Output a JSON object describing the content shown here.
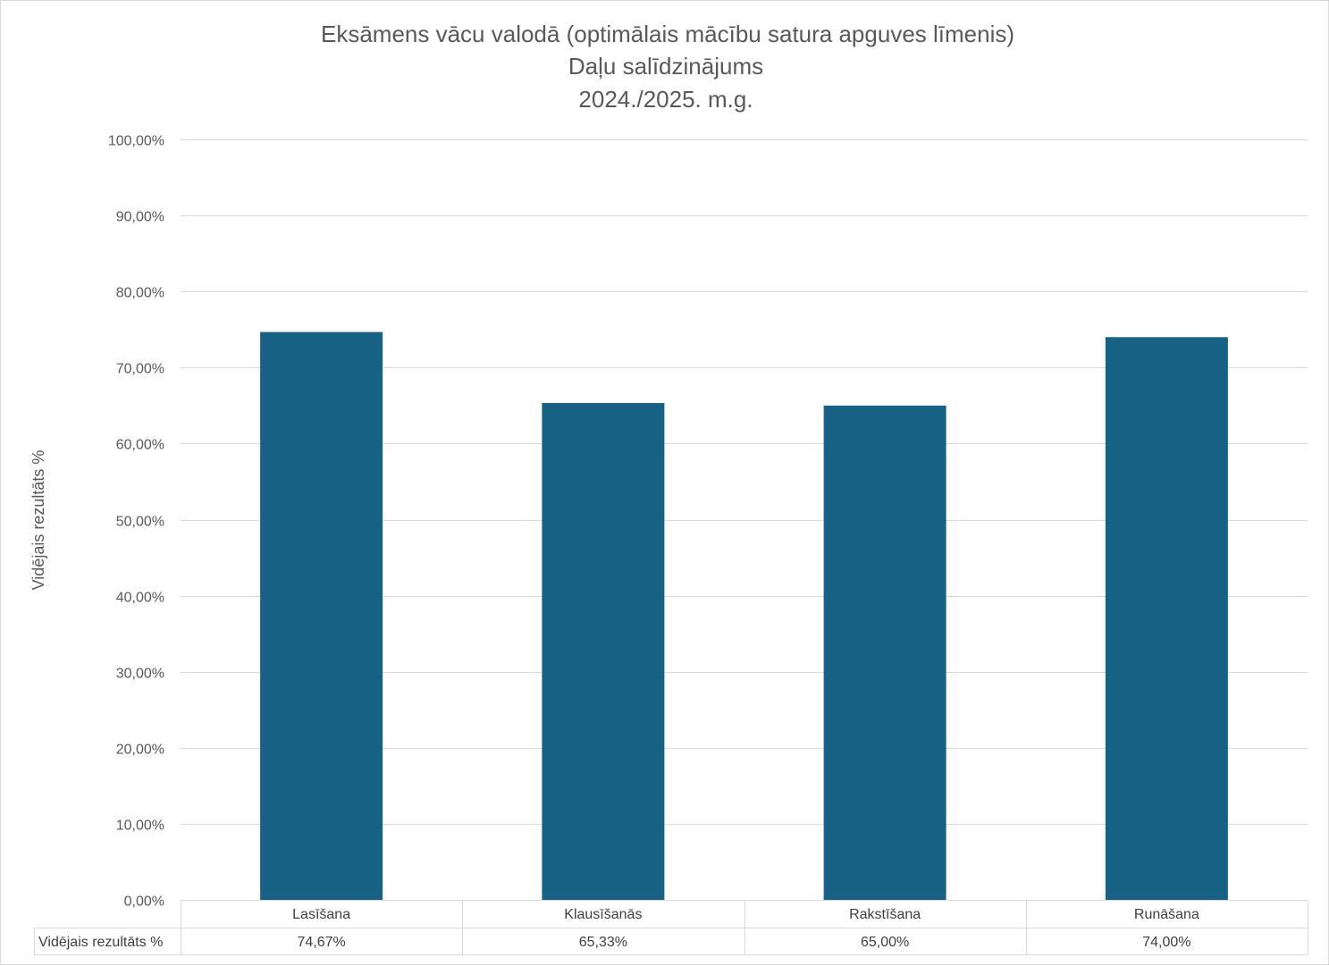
{
  "chart_data": {
    "type": "bar",
    "title": [
      "Eksāmens vācu valodā (optimālais mācību satura apguves līmenis)",
      "Daļu salīdzinājums",
      "2024./2025. m.g."
    ],
    "xlabel": "",
    "ylabel": "Vidējais rezultāts %",
    "categories": [
      "Lasīšana",
      "Klausīšanās",
      "Rakstīšana",
      "Runāšana"
    ],
    "series": [
      {
        "name": "Vidējais rezultāts %",
        "values": [
          74.67,
          65.33,
          65.0,
          74.0
        ],
        "labels": [
          "74,67%",
          "65,33%",
          "65,00%",
          "74,00%"
        ],
        "color": "#176184"
      }
    ],
    "ylim": [
      0,
      100
    ],
    "yticks": [
      0,
      10,
      20,
      30,
      40,
      50,
      60,
      70,
      80,
      90,
      100
    ],
    "ytick_labels": [
      "0,00%",
      "10,00%",
      "20,00%",
      "30,00%",
      "40,00%",
      "50,00%",
      "60,00%",
      "70,00%",
      "80,00%",
      "90,00%",
      "100,00%"
    ],
    "grid": true,
    "legend": "none",
    "data_table": true
  }
}
